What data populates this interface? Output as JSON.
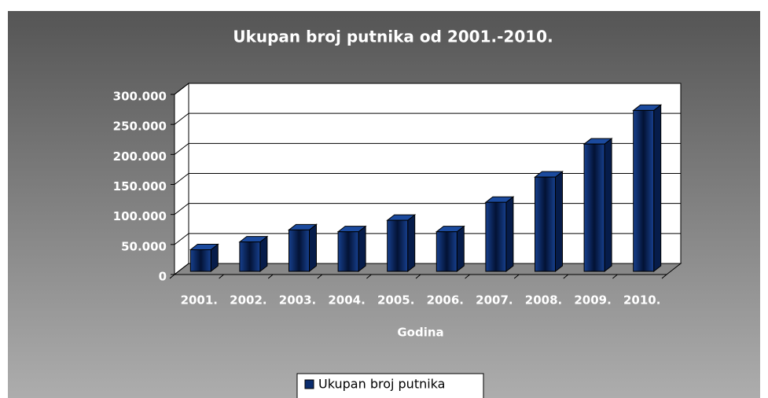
{
  "chart_data": {
    "type": "bar3d",
    "title": "Ukupan broj putnika od 2001.-2010.",
    "x_label": "Godina",
    "categories": [
      "2001.",
      "2002.",
      "2003.",
      "2004.",
      "2005.",
      "2006.",
      "2007.",
      "2008.",
      "2009.",
      "2010."
    ],
    "series": [
      {
        "name": "Ukupan broj putnika",
        "color": "#0b2d6e",
        "values": [
          36000,
          49000,
          69000,
          66000,
          85000,
          66000,
          115000,
          157000,
          212000,
          268000
        ]
      }
    ],
    "ylim": [
      0,
      300000
    ],
    "yticks": [
      0,
      {
        "value": 50000,
        "label": "50.000"
      },
      {
        "value": 100000,
        "label": "100.000"
      },
      {
        "value": 150000,
        "label": "150.000"
      },
      {
        "value": 200000,
        "label": "200.000"
      },
      {
        "value": 250000,
        "label": "250.000"
      },
      {
        "value": 300000,
        "label": "300.000"
      }
    ],
    "grid": true,
    "legend": "bottom"
  }
}
